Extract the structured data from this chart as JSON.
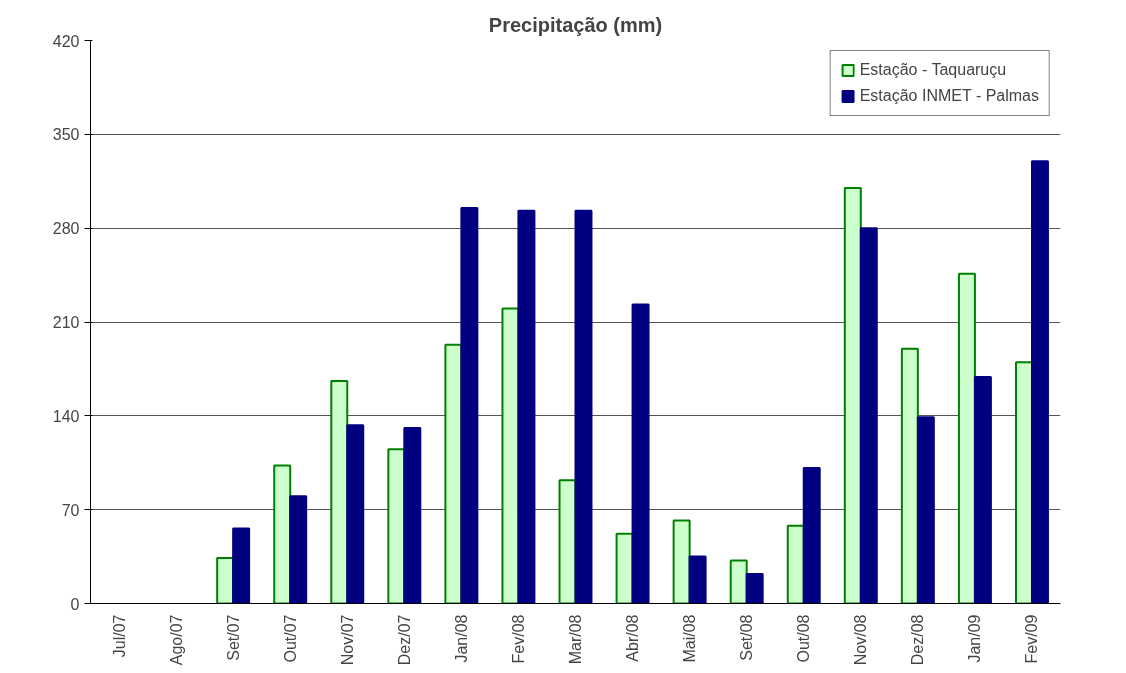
{
  "chart_data": {
    "type": "bar",
    "title": "Precipitação (mm)",
    "categories": [
      "Jul/07",
      "Ago/07",
      "Set/07",
      "Out/07",
      "Nov/07",
      "Dez/07",
      "Jan/08",
      "Fev/08",
      "Mar/08",
      "Abr/08",
      "Mai/08",
      "Set/08",
      "Out/08",
      "Nov/08",
      "Dez/08",
      "Jan/09",
      "Fev/09"
    ],
    "series": [
      {
        "name": "Estação - Taquaruçu",
        "color": "#ccffcc",
        "values": [
          null,
          null,
          34,
          103,
          166,
          115,
          193,
          220,
          92,
          52,
          62,
          32,
          58,
          310,
          190,
          246,
          180
        ]
      },
      {
        "name": "Estação INMET - Palmas",
        "color": "#000080",
        "values": [
          null,
          null,
          56,
          80,
          133,
          131,
          295,
          293,
          293,
          223,
          35,
          22,
          101,
          280,
          139,
          169,
          330
        ]
      }
    ],
    "ylim": [
      0,
      420
    ],
    "yticks": [
      0,
      70,
      140,
      210,
      280,
      350,
      420
    ],
    "grid": "y",
    "legend": "top right"
  }
}
